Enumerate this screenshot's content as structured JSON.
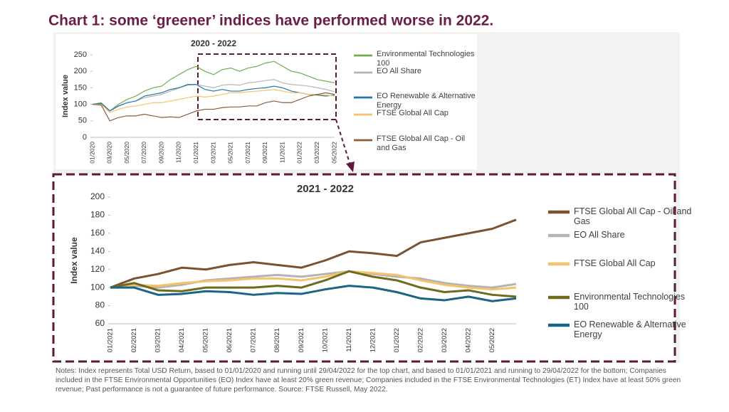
{
  "title": "Chart 1: some ‘greener’ indices have performed worse in 2022.",
  "notes": "Notes: Index represents Total USD Return, based to 01/01/2020 and running until 29/04/2022 for the top chart, and based to 01/01/2021 and running to 29/04/2022 for the bottom; Companies included in the FTSE Environmental Opportunities (EO) Index have at least 20% green revenue; Companies included in the FTSE Environmental Technologies (ET) Index have at least 50% green revenue; Past performance is not a guarantee of future performance. Source: FTSE Russell, May 2022.",
  "chart_data": [
    {
      "type": "line",
      "title": "2020 - 2022",
      "y_label": "Index value",
      "categories": [
        "01/2020",
        null,
        "03/2020",
        null,
        "05/2020",
        null,
        "07/2020",
        null,
        "09/2020",
        null,
        "11/2020",
        null,
        "01/2021",
        null,
        "03/2021",
        null,
        "05/2021",
        null,
        "07/2021",
        null,
        "09/2021",
        null,
        "11/2021",
        null,
        "01/2022",
        null,
        "03/2022",
        null,
        "05/2022"
      ],
      "ylim": [
        0,
        250
      ],
      "yticks": [
        0,
        50,
        100,
        150,
        200,
        250
      ],
      "grid": false,
      "series": [
        {
          "name": "Environmental Technologies 100",
          "color": "#70ad47",
          "values": [
            100,
            105,
            80,
            100,
            115,
            125,
            140,
            150,
            155,
            175,
            190,
            205,
            215,
            200,
            190,
            205,
            210,
            200,
            210,
            215,
            225,
            230,
            215,
            200,
            195,
            185,
            175,
            170,
            165
          ]
        },
        {
          "name": "EO All Share",
          "color": "#b4b4b4",
          "values": [
            100,
            103,
            80,
            95,
            105,
            110,
            120,
            125,
            130,
            140,
            150,
            158,
            160,
            155,
            150,
            158,
            160,
            158,
            165,
            168,
            172,
            175,
            165,
            160,
            158,
            155,
            150,
            145,
            138
          ]
        },
        {
          "name": "EO Renewable & Alternative Energy",
          "color": "#1f78a8",
          "values": [
            100,
            103,
            80,
            95,
            105,
            110,
            125,
            130,
            135,
            145,
            150,
            160,
            160,
            145,
            140,
            145,
            140,
            140,
            145,
            148,
            150,
            155,
            150,
            140,
            135,
            130,
            128,
            125,
            128
          ]
        },
        {
          "name": "FTSE Global All Cap",
          "color": "#f6c26b",
          "values": [
            100,
            100,
            75,
            85,
            92,
            95,
            100,
            105,
            105,
            110,
            115,
            120,
            125,
            122,
            125,
            130,
            135,
            135,
            138,
            140,
            142,
            145,
            140,
            135,
            135,
            130,
            130,
            128,
            125
          ]
        },
        {
          "name": "FTSE Global All Cap - Oil and Gas",
          "color": "#8b5e3c",
          "values": [
            100,
            98,
            50,
            60,
            65,
            65,
            70,
            65,
            60,
            62,
            60,
            70,
            80,
            85,
            85,
            90,
            92,
            92,
            95,
            95,
            105,
            110,
            105,
            105,
            115,
            125,
            130,
            135,
            130
          ]
        }
      ]
    },
    {
      "type": "line",
      "title": "2021 - 2022",
      "y_label": "Index value",
      "categories": [
        "01/2021",
        "02/2021",
        "03/2021",
        "04/2021",
        "05/2021",
        "06/2021",
        "07/2021",
        "08/2021",
        "09/2021",
        "10/2021",
        "11/2021",
        "12/2021",
        "01/2022",
        "02/2022",
        "03/2022",
        "04/2022",
        "05/2022",
        null
      ],
      "ylim": [
        60,
        200
      ],
      "yticks": [
        60,
        80,
        100,
        120,
        140,
        160,
        180,
        200
      ],
      "grid": false,
      "series": [
        {
          "name": "FTSE Global All Cap - Oil and Gas",
          "color": "#7a5230",
          "values": [
            100,
            110,
            115,
            122,
            120,
            125,
            128,
            125,
            122,
            130,
            140,
            138,
            135,
            150,
            155,
            160,
            165,
            175
          ]
        },
        {
          "name": "EO All Share",
          "color": "#b4b4b4",
          "values": [
            100,
            102,
            100,
            103,
            108,
            110,
            112,
            114,
            112,
            115,
            118,
            115,
            112,
            110,
            105,
            102,
            100,
            104
          ]
        },
        {
          "name": "FTSE Global All Cap",
          "color": "#f6c26b",
          "values": [
            100,
            103,
            102,
            105,
            107,
            108,
            110,
            110,
            108,
            112,
            118,
            116,
            114,
            108,
            103,
            100,
            98,
            100
          ]
        },
        {
          "name": "Environmental Technologies 100",
          "color": "#6e6a1e",
          "values": [
            100,
            105,
            97,
            96,
            100,
            100,
            100,
            102,
            100,
            108,
            118,
            112,
            108,
            100,
            95,
            97,
            92,
            90
          ]
        },
        {
          "name": "EO Renewable & Alternative Energy",
          "color": "#1a6486",
          "values": [
            100,
            100,
            92,
            93,
            96,
            95,
            92,
            94,
            93,
            98,
            102,
            100,
            95,
            88,
            86,
            90,
            85,
            88
          ]
        }
      ]
    }
  ]
}
